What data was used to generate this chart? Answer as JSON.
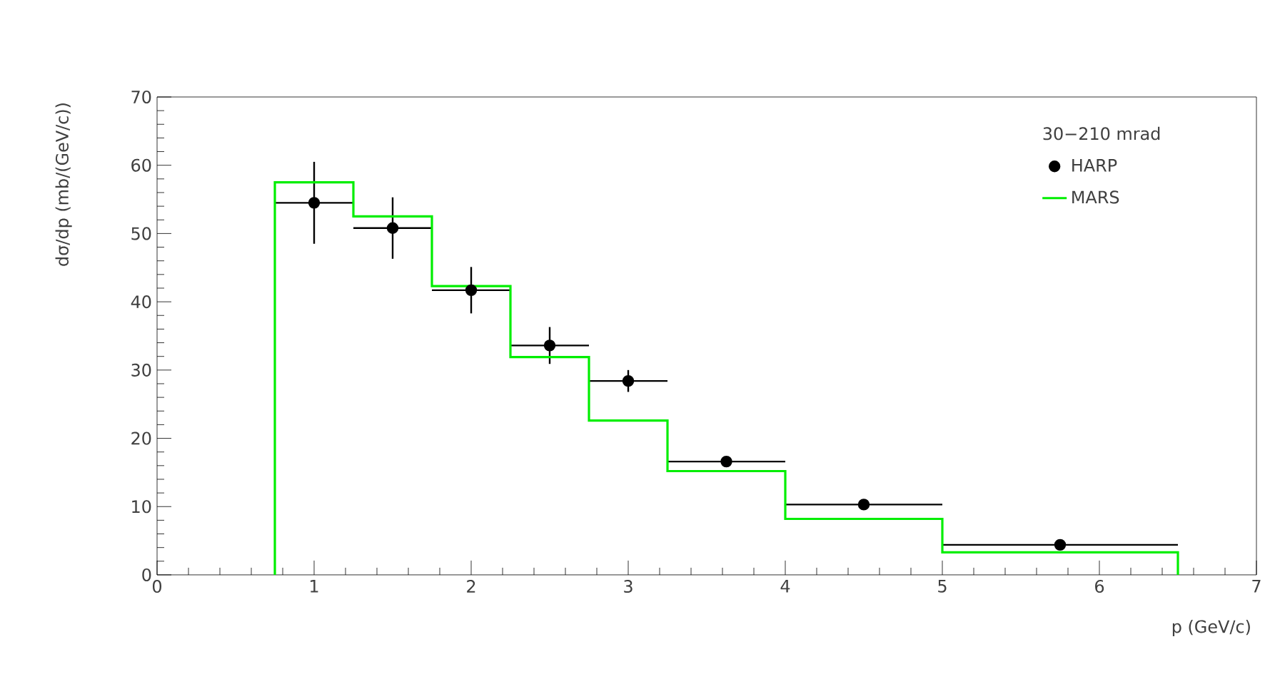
{
  "chart_data": {
    "type": "scatter",
    "xlabel": "p (GeV/c)",
    "ylabel": "dσ/dp  (mb/(GeV/c))",
    "legend_title": "30−210 mrad",
    "legend": "top right",
    "marker": "circle",
    "grid": false,
    "xlim": [
      0,
      7
    ],
    "xticks": [
      0,
      1,
      2,
      3,
      4,
      5,
      6,
      7
    ],
    "ylim": [
      0,
      70
    ],
    "yticks": [
      0,
      10,
      20,
      30,
      40,
      50,
      60,
      70
    ],
    "series": [
      {
        "name": "HARP",
        "color": "#000000",
        "x": [
          1,
          1.5,
          2,
          2.5,
          3,
          3.625,
          4.5,
          5.75
        ],
        "values": [
          54.5,
          50.8,
          41.7,
          33.6,
          28.4,
          16.6,
          10.3,
          4.4
        ],
        "errors": [
          6,
          4.5,
          3.4,
          2.7,
          1.6,
          null,
          null,
          null
        ],
        "xerrors": [
          0.25,
          0.25,
          0.25,
          0.25,
          0.25,
          0.375,
          0.5,
          0.75
        ]
      },
      {
        "name": "MARS",
        "type": "histogram",
        "color": "#00ee00",
        "bins": [
          0.75,
          1.25,
          1.75,
          2.25,
          2.75,
          3.25,
          4,
          5,
          6.5
        ],
        "values": [
          57.5,
          52.5,
          42.3,
          31.9,
          22.6,
          15.2,
          8.2,
          3.3
        ]
      }
    ]
  }
}
